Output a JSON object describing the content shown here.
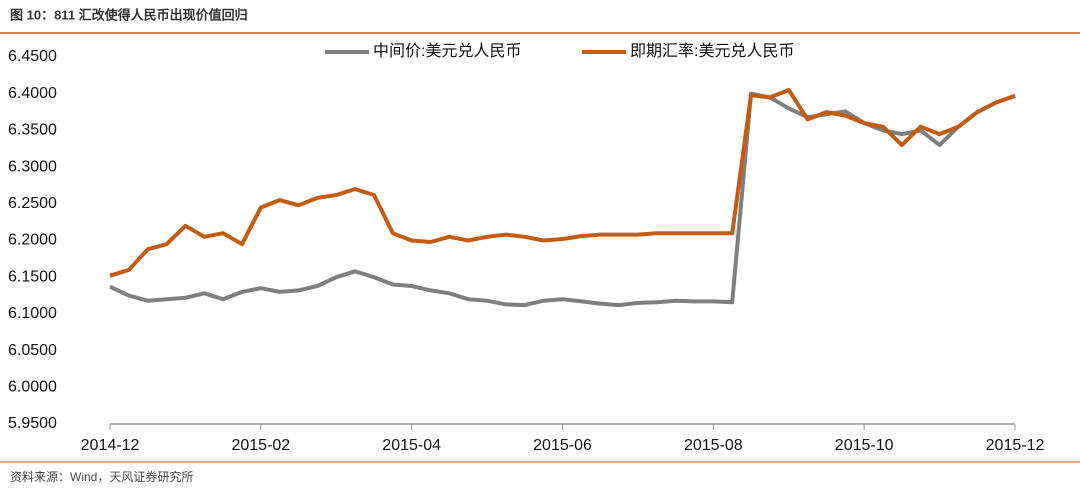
{
  "chart_data": {
    "type": "line",
    "title": "图 10：811 汇改使得人民币出现价值回归",
    "source": "资料来源：Wind，天风证券研究所",
    "categories": [
      "2014-12",
      null,
      null,
      null,
      null,
      null,
      null,
      null,
      "2015-02",
      null,
      null,
      null,
      null,
      null,
      null,
      null,
      "2015-04",
      null,
      null,
      null,
      null,
      null,
      null,
      null,
      "2015-06",
      null,
      null,
      null,
      null,
      null,
      null,
      null,
      "2015-08",
      null,
      null,
      null,
      null,
      null,
      null,
      null,
      "2015-10",
      null,
      null,
      null,
      null,
      null,
      null,
      null,
      "2015-12"
    ],
    "series": [
      {
        "name": "中间价:美元兑人民币",
        "color": "#7f7f7f",
        "values": [
          6.137,
          6.125,
          6.118,
          6.12,
          6.122,
          6.128,
          6.12,
          6.13,
          6.135,
          6.13,
          6.132,
          6.138,
          6.15,
          6.158,
          6.15,
          6.14,
          6.138,
          6.132,
          6.128,
          6.12,
          6.118,
          6.113,
          6.112,
          6.118,
          6.12,
          6.117,
          6.114,
          6.112,
          6.115,
          6.116,
          6.118,
          6.117,
          6.117,
          6.116,
          6.4,
          6.395,
          6.38,
          6.368,
          6.372,
          6.376,
          6.36,
          6.35,
          6.345,
          6.35,
          6.33,
          6.355,
          6.375,
          6.388,
          6.397
        ]
      },
      {
        "name": "即期汇率:美元兑人民币",
        "color": "#c55a11",
        "values": [
          6.152,
          6.16,
          6.188,
          6.195,
          6.22,
          6.205,
          6.21,
          6.195,
          6.245,
          6.255,
          6.248,
          6.258,
          6.262,
          6.27,
          6.262,
          6.21,
          6.2,
          6.198,
          6.205,
          6.2,
          6.205,
          6.208,
          6.205,
          6.2,
          6.202,
          6.206,
          6.208,
          6.208,
          6.208,
          6.21,
          6.21,
          6.21,
          6.21,
          6.21,
          6.398,
          6.395,
          6.405,
          6.365,
          6.375,
          6.37,
          6.36,
          6.355,
          6.33,
          6.355,
          6.345,
          6.355,
          6.375,
          6.388,
          6.397
        ]
      }
    ],
    "ylim": [
      5.95,
      6.45
    ],
    "yticks": [
      {
        "value": 5.95,
        "label": "5.9500"
      },
      {
        "value": 6.0,
        "label": "6.0000"
      },
      {
        "value": 6.05,
        "label": "6.0500"
      },
      {
        "value": 6.1,
        "label": "6.1000"
      },
      {
        "value": 6.15,
        "label": "6.1500"
      },
      {
        "value": 6.2,
        "label": "6.2000"
      },
      {
        "value": 6.25,
        "label": "6.2500"
      },
      {
        "value": 6.3,
        "label": "6.3000"
      },
      {
        "value": 6.35,
        "label": "6.3500"
      },
      {
        "value": 6.4,
        "label": "6.4000"
      },
      {
        "value": 6.45,
        "label": "6.4500"
      }
    ],
    "grid": false,
    "legend": "top"
  }
}
